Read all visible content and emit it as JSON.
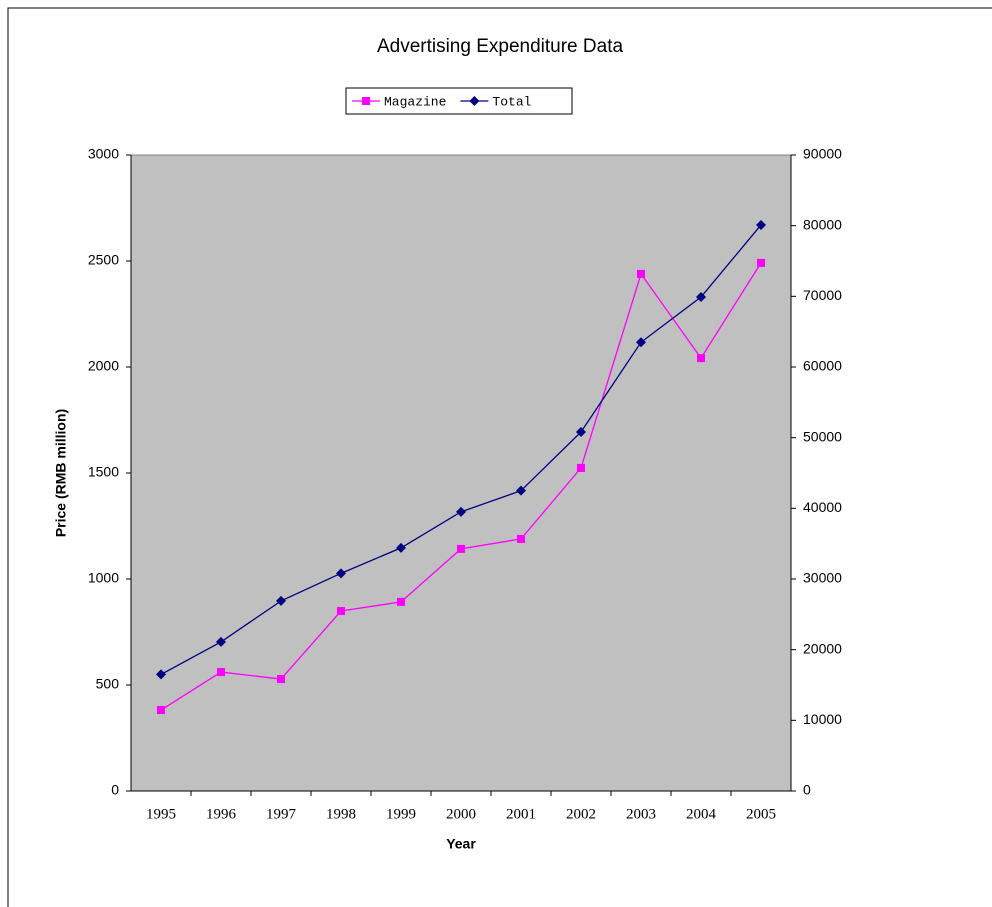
{
  "chart_data": {
    "type": "line",
    "title": "Advertising Expenditure Data",
    "x_label": "Year",
    "y_label": "Price (RMB million)",
    "categories": [
      "1995",
      "1996",
      "1997",
      "1998",
      "1999",
      "2000",
      "2001",
      "2002",
      "2003",
      "2004",
      "2005"
    ],
    "series": [
      {
        "name": "Magazine",
        "color": "#ff00ff",
        "marker": "square",
        "values": [
          382,
          561,
          528,
          849,
          892,
          1142,
          1189,
          1524,
          2439,
          2042,
          2491
        ]
      },
      {
        "name": "Total",
        "color": "#000080",
        "marker": "diamond",
        "axis": "y2",
        "values": [
          16500,
          21100,
          26900,
          30800,
          34400,
          39500,
          42500,
          50800,
          63500,
          69900,
          80100
        ]
      }
    ],
    "ylim": [
      0,
      3000
    ],
    "yticks": [
      0,
      500,
      1000,
      1500,
      2000,
      2500,
      3000
    ],
    "y2lim": [
      0,
      90000
    ],
    "y2ticks": [
      0,
      10000,
      20000,
      30000,
      40000,
      50000,
      60000,
      70000,
      80000,
      90000
    ],
    "legend": "top"
  }
}
